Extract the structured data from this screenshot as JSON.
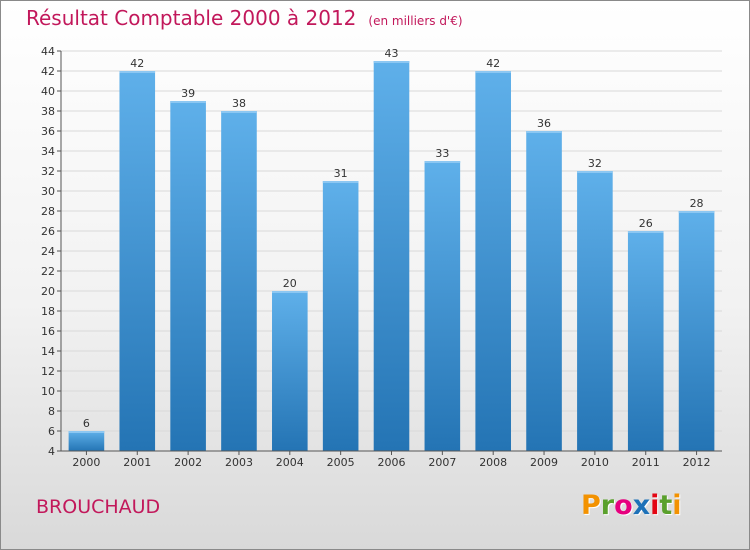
{
  "title": "Résultat Comptable 2000 à 2012",
  "unit_note": "(en milliers d'€)",
  "commune": "BROUCHAUD",
  "logo": {
    "text": "Proxiti",
    "letters": [
      "P",
      "r",
      "o",
      "x",
      "i",
      "t",
      "i"
    ],
    "colors": [
      "#f39200",
      "#5aa02c",
      "#e6007e",
      "#1d71b8",
      "#e30613",
      "#5aa02c",
      "#f39200"
    ]
  },
  "colors": {
    "title": "#c2185b",
    "bar_top": "#5fb0ea",
    "bar_bottom": "#2474b4",
    "grid": "#d9d9d9",
    "axis": "#555555"
  },
  "chart_data": {
    "type": "bar",
    "categories": [
      "2000",
      "2001",
      "2002",
      "2003",
      "2004",
      "2005",
      "2006",
      "2007",
      "2008",
      "2009",
      "2010",
      "2011",
      "2012"
    ],
    "values": [
      6,
      42,
      39,
      38,
      20,
      31,
      43,
      33,
      42,
      36,
      32,
      26,
      28
    ],
    "ylim": [
      4,
      44
    ],
    "yticks": [
      4,
      6,
      8,
      10,
      12,
      14,
      16,
      18,
      20,
      22,
      24,
      26,
      28,
      30,
      32,
      34,
      36,
      38,
      40,
      42,
      44
    ],
    "grid": true,
    "data_labels": true
  }
}
